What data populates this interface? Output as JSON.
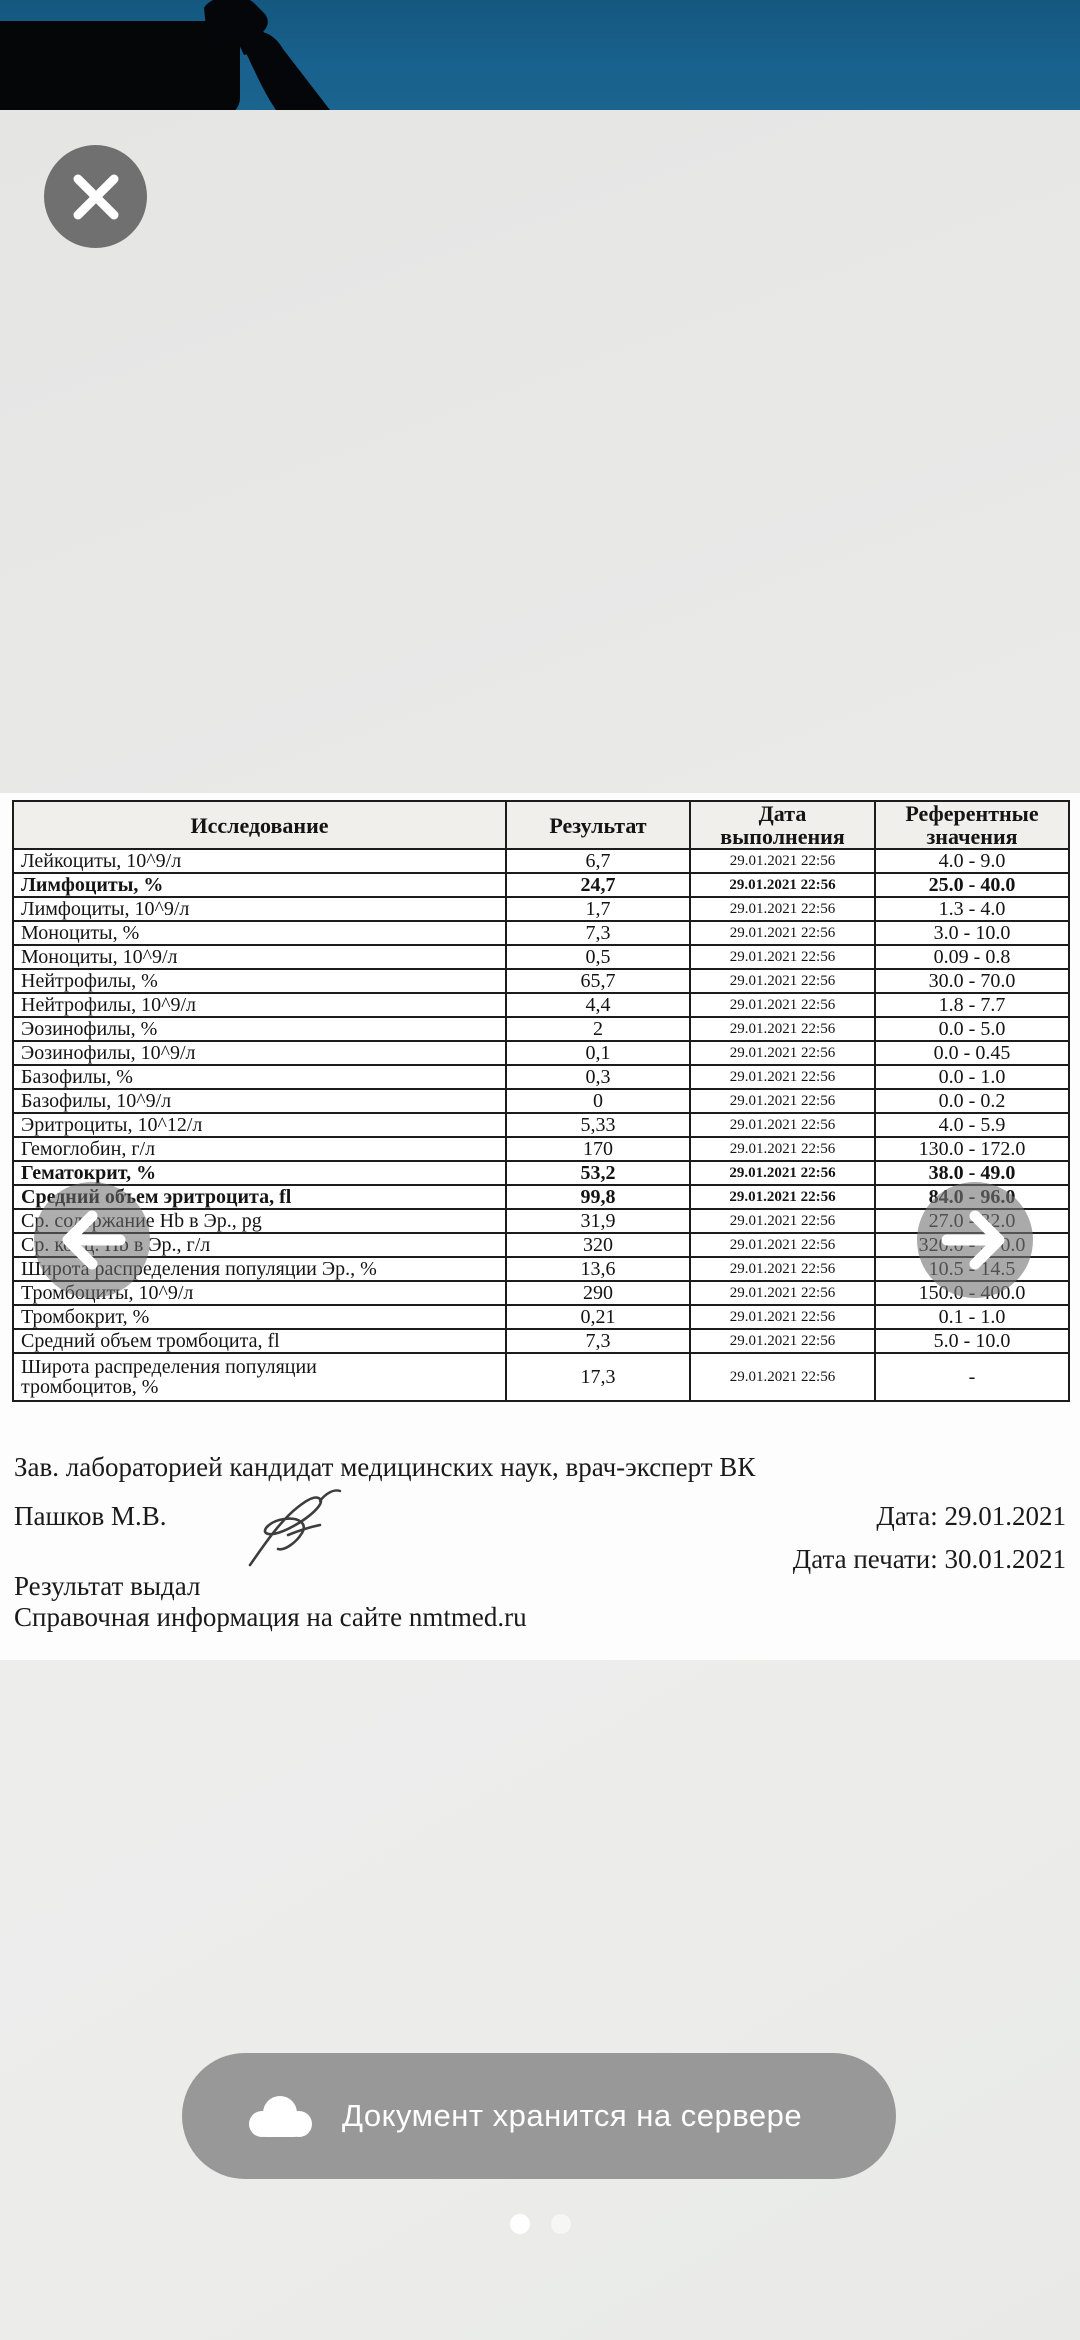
{
  "banner": {
    "photo_alt_icon": "hand-holding-card-silhouette-icon"
  },
  "close": {
    "icon": "close-icon"
  },
  "table": {
    "columns": [
      "Исследование",
      "Результат",
      "Дата выполнения",
      "Референтные значения"
    ],
    "rows": [
      {
        "name": "Лейкоциты, 10^9/л",
        "result": "6,7",
        "date": "29.01.2021 22:56",
        "ref": "4.0 - 9.0",
        "bold": false
      },
      {
        "name": "Лимфоциты, %",
        "result": "24,7",
        "date": "29.01.2021 22:56",
        "ref": "25.0 - 40.0",
        "bold": true
      },
      {
        "name": "Лимфоциты, 10^9/л",
        "result": "1,7",
        "date": "29.01.2021 22:56",
        "ref": "1.3 - 4.0",
        "bold": false
      },
      {
        "name": "Моноциты, %",
        "result": "7,3",
        "date": "29.01.2021 22:56",
        "ref": "3.0 - 10.0",
        "bold": false
      },
      {
        "name": "Моноциты, 10^9/л",
        "result": "0,5",
        "date": "29.01.2021 22:56",
        "ref": "0.09 - 0.8",
        "bold": false
      },
      {
        "name": "Нейтрофилы, %",
        "result": "65,7",
        "date": "29.01.2021 22:56",
        "ref": "30.0 - 70.0",
        "bold": false
      },
      {
        "name": "Нейтрофилы, 10^9/л",
        "result": "4,4",
        "date": "29.01.2021 22:56",
        "ref": "1.8 - 7.7",
        "bold": false
      },
      {
        "name": "Эозинофилы, %",
        "result": "2",
        "date": "29.01.2021 22:56",
        "ref": "0.0 - 5.0",
        "bold": false
      },
      {
        "name": "Эозинофилы, 10^9/л",
        "result": "0,1",
        "date": "29.01.2021 22:56",
        "ref": "0.0 - 0.45",
        "bold": false
      },
      {
        "name": "Базофилы, %",
        "result": "0,3",
        "date": "29.01.2021 22:56",
        "ref": "0.0 - 1.0",
        "bold": false
      },
      {
        "name": "Базофилы, 10^9/л",
        "result": "0",
        "date": "29.01.2021 22:56",
        "ref": "0.0 - 0.2",
        "bold": false
      },
      {
        "name": "Эритроциты, 10^12/л",
        "result": "5,33",
        "date": "29.01.2021 22:56",
        "ref": "4.0 - 5.9",
        "bold": false
      },
      {
        "name": "Гемоглобин, г/л",
        "result": "170",
        "date": "29.01.2021 22:56",
        "ref": "130.0 - 172.0",
        "bold": false
      },
      {
        "name": "Гематокрит, %",
        "result": "53,2",
        "date": "29.01.2021 22:56",
        "ref": "38.0 - 49.0",
        "bold": true
      },
      {
        "name": "Средний объем эритроцита, fl",
        "result": "99,8",
        "date": "29.01.2021 22:56",
        "ref": "84.0 - 96.0",
        "bold": true
      },
      {
        "name": "Ср. содержание Hb в Эр., pg",
        "result": "31,9",
        "date": "29.01.2021 22:56",
        "ref": "27.0 - 32.0",
        "bold": false
      },
      {
        "name": "Ср. конц. Hb в Эр., г/л",
        "result": "320",
        "date": "29.01.2021 22:56",
        "ref": "320.0 - 370.0",
        "bold": false
      },
      {
        "name": "Широта распределения популяции Эр., %",
        "result": "13,6",
        "date": "29.01.2021 22:56",
        "ref": "10.5 - 14.5",
        "bold": false
      },
      {
        "name": "Тромбоциты, 10^9/л",
        "result": "290",
        "date": "29.01.2021 22:56",
        "ref": "150.0 - 400.0",
        "bold": false
      },
      {
        "name": "Тромбокрит, %",
        "result": "0,21",
        "date": "29.01.2021 22:56",
        "ref": "0.1 - 1.0",
        "bold": false
      },
      {
        "name": "Средний объем тромбоцита, fl",
        "result": "7,3",
        "date": "29.01.2021 22:56",
        "ref": "5.0 - 10.0",
        "bold": false
      },
      {
        "name": "Широта распределения популяции\nтромбоцитов, %",
        "result": "17,3",
        "date": "29.01.2021 22:56",
        "ref": "-",
        "bold": false,
        "tall": true
      }
    ]
  },
  "footer": {
    "lab_head": "Зав. лабораторией кандидат медицинских наук, врач-эксперт ВК",
    "signer": "Пашков М.В.",
    "signature_icon": "signature-scribble-icon",
    "date": "Дата: 29.01.2021",
    "print_date": "Дата печати: 30.01.2021",
    "result_issued": "Результат выдал",
    "info": "Справочная информация на сайте nmtmed.ru"
  },
  "nav": {
    "prev_icon": "arrow-left-icon",
    "next_icon": "arrow-right-icon"
  },
  "toast": {
    "icon": "cloud-icon",
    "text": "Документ хранится на сервере"
  },
  "pager": {
    "count": 2,
    "active": 0
  },
  "colors": {
    "banner_blue": "#19618e",
    "page_white": "#fdfdfd",
    "background_gray": "#e9e9e8",
    "table_border": "#1c1c1c",
    "toast_gray": "#939393",
    "accent_white": "#ffffff"
  }
}
